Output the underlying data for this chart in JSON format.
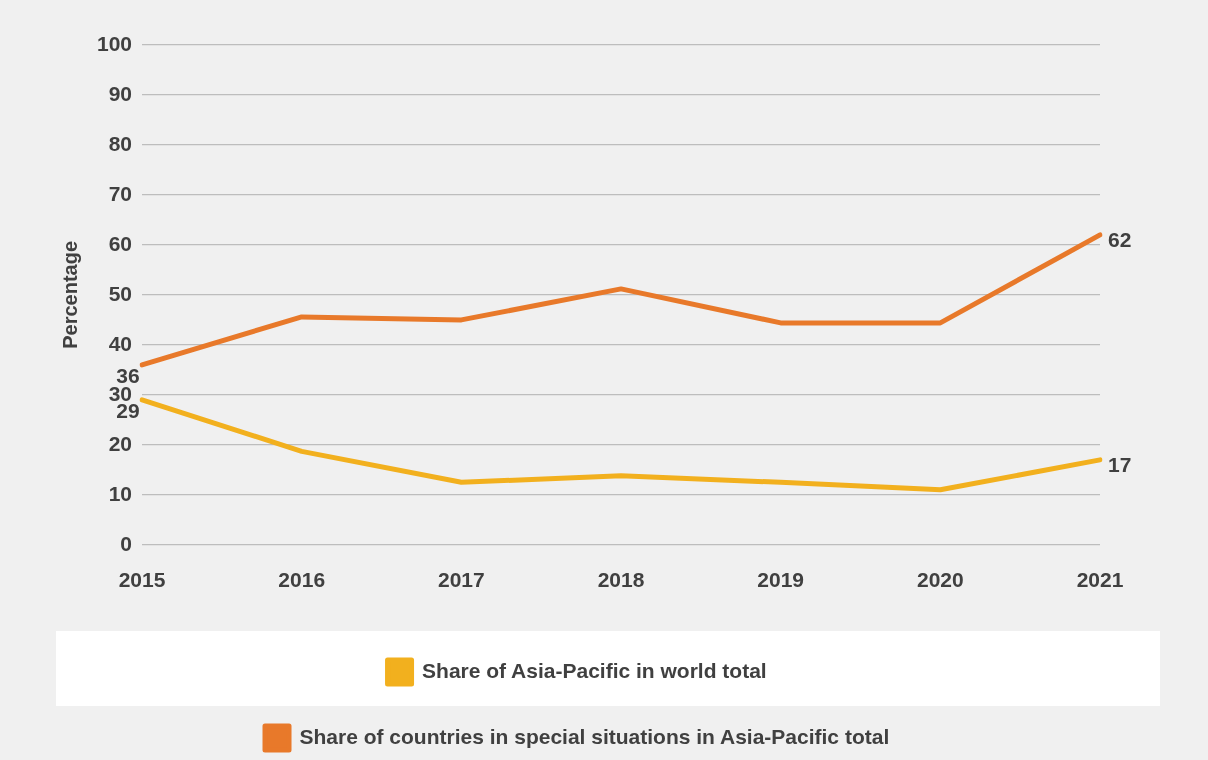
{
  "chart_data": {
    "type": "line",
    "ylabel": "Percentage",
    "categories": [
      "2015",
      "2016",
      "2017",
      "2018",
      "2019",
      "2020",
      "2021"
    ],
    "series": [
      {
        "name": "Share of Asia-Pacific in world total",
        "color": "#f2b01e",
        "values": [
          29,
          18.7,
          12.5,
          13.8,
          12.5,
          11,
          17
        ],
        "value_labels": [
          "29",
          null,
          null,
          null,
          null,
          null,
          "17"
        ]
      },
      {
        "name": "Share of countries in special situations in Asia-Pacific total",
        "color": "#e8792a",
        "values": [
          36,
          45.6,
          45,
          51.2,
          44.4,
          44.4,
          62
        ],
        "value_labels": [
          "36",
          null,
          null,
          null,
          null,
          null,
          "62"
        ]
      }
    ],
    "ylim": [
      0,
      100
    ],
    "yticks": [
      0,
      10,
      20,
      30,
      40,
      50,
      60,
      70,
      80,
      90,
      100
    ],
    "grid": "y",
    "legend": "bottom",
    "marker": "none",
    "line_style": "solid"
  }
}
